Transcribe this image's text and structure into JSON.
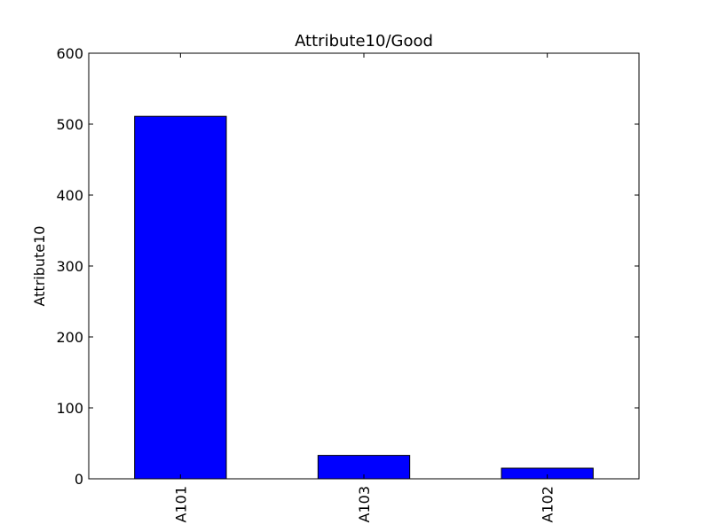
{
  "chart_data": {
    "type": "bar",
    "title": "Attribute10/Good",
    "ylabel": "Attribute10",
    "xlabel": "",
    "categories": [
      "A101",
      "A103",
      "A102"
    ],
    "series": [
      {
        "values": [
          511,
          33,
          15
        ]
      }
    ],
    "ylim": [
      0,
      600
    ],
    "yticks": [
      0,
      100,
      200,
      300,
      400,
      500,
      600
    ],
    "bar_color": "#0000ff",
    "grid": false,
    "legend": "none"
  }
}
